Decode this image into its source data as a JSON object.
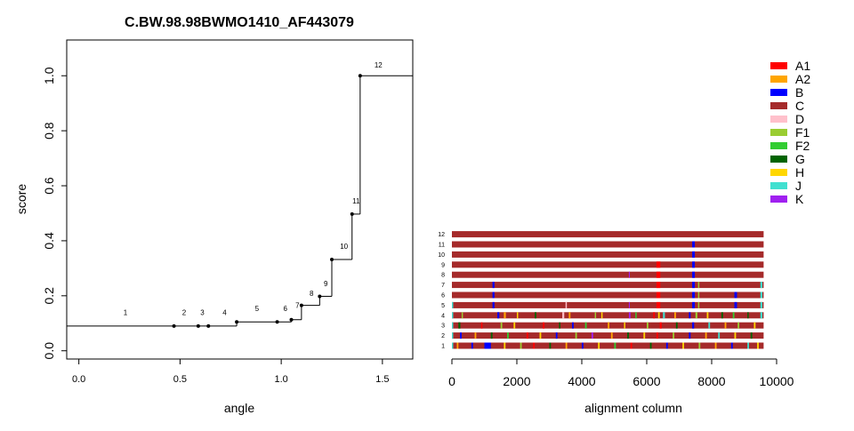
{
  "chart_data": [
    {
      "type": "line",
      "title": "C.BW.98.98BWMO1410_AF443079",
      "xlabel": "angle",
      "ylabel": "score",
      "xlim": [
        -0.06,
        1.65
      ],
      "ylim": [
        -0.03,
        1.13
      ],
      "x_ticks": [
        0.0,
        0.5,
        1.0,
        1.5
      ],
      "x_tick_labels": [
        "0.0",
        "0.5",
        "1.0",
        "1.5"
      ],
      "y_ticks": [
        0.0,
        0.2,
        0.4,
        0.6,
        0.8,
        1.0
      ],
      "y_tick_labels": [
        "0.0",
        "0.2",
        "0.4",
        "0.6",
        "0.8",
        "1.0"
      ],
      "step_points": [
        {
          "label": "1",
          "x": -0.06,
          "y": 0.09
        },
        {
          "label": "2",
          "x": 0.47,
          "y": 0.09
        },
        {
          "label": "3",
          "x": 0.59,
          "y": 0.09
        },
        {
          "label": "4",
          "x": 0.64,
          "y": 0.09
        },
        {
          "label": "5",
          "x": 0.78,
          "y": 0.105
        },
        {
          "label": "6",
          "x": 0.98,
          "y": 0.105
        },
        {
          "label": "7",
          "x": 1.05,
          "y": 0.113
        },
        {
          "label": "8",
          "x": 1.1,
          "y": 0.165
        },
        {
          "label": "9",
          "x": 1.19,
          "y": 0.198
        },
        {
          "label": "10",
          "x": 1.25,
          "y": 0.332
        },
        {
          "label": "11",
          "x": 1.35,
          "y": 0.497
        },
        {
          "label": "12",
          "x": 1.39,
          "y": 1.0
        }
      ],
      "end_x": 1.65,
      "marker_x": [
        0.47,
        0.59,
        0.64,
        0.78,
        0.98,
        1.05,
        1.1,
        1.19,
        1.25,
        1.35,
        1.39
      ],
      "point_labels": [
        {
          "text": "1",
          "x": 0.23,
          "y": 0.13
        },
        {
          "text": "2",
          "x": 0.52,
          "y": 0.13
        },
        {
          "text": "3",
          "x": 0.61,
          "y": 0.13
        },
        {
          "text": "4",
          "x": 0.72,
          "y": 0.13
        },
        {
          "text": "5",
          "x": 0.88,
          "y": 0.145
        },
        {
          "text": "6",
          "x": 1.02,
          "y": 0.145
        },
        {
          "text": "7",
          "x": 1.08,
          "y": 0.155
        },
        {
          "text": "8",
          "x": 1.15,
          "y": 0.2
        },
        {
          "text": "9",
          "x": 1.22,
          "y": 0.235
        },
        {
          "text": "10",
          "x": 1.31,
          "y": 0.37
        },
        {
          "text": "11",
          "x": 1.37,
          "y": 0.535
        },
        {
          "text": "12",
          "x": 1.48,
          "y": 1.03
        }
      ]
    },
    {
      "type": "heatmap",
      "xlabel": "alignment column",
      "xlim": [
        0,
        10000
      ],
      "x_ticks": [
        0,
        2000,
        4000,
        6000,
        8000,
        10000
      ],
      "x_tick_labels": [
        "0",
        "2000",
        "4000",
        "6000",
        "8000",
        "10000"
      ],
      "sequence_length": 9600,
      "row_labels": [
        "1",
        "2",
        "3",
        "4",
        "5",
        "6",
        "7",
        "8",
        "9",
        "10",
        "11",
        "12"
      ],
      "base_subtype": "C",
      "segments": {
        "12": [],
        "11": [
          [
            7400,
            7480,
            "B"
          ]
        ],
        "10": [
          [
            7400,
            7480,
            "B"
          ]
        ],
        "9": [
          [
            6300,
            6420,
            "A1"
          ],
          [
            7400,
            7480,
            "B"
          ]
        ],
        "8": [
          [
            6300,
            6420,
            "A1"
          ],
          [
            7400,
            7480,
            "B"
          ],
          [
            5450,
            5480,
            "K"
          ]
        ],
        "7": [
          [
            1250,
            1310,
            "B"
          ],
          [
            6300,
            6420,
            "A1"
          ],
          [
            7400,
            7480,
            "B"
          ],
          [
            7580,
            7620,
            "F1"
          ],
          [
            9500,
            9560,
            "J"
          ]
        ],
        "6": [
          [
            1250,
            1310,
            "B"
          ],
          [
            6300,
            6420,
            "A1"
          ],
          [
            7400,
            7480,
            "B"
          ],
          [
            7580,
            7620,
            "F1"
          ],
          [
            8700,
            8780,
            "B"
          ],
          [
            9500,
            9560,
            "J"
          ]
        ],
        "5": [
          [
            0,
            40,
            "J"
          ],
          [
            1250,
            1310,
            "B"
          ],
          [
            3500,
            3540,
            "D"
          ],
          [
            5450,
            5480,
            "K"
          ],
          [
            6300,
            6420,
            "A1"
          ],
          [
            7400,
            7480,
            "B"
          ],
          [
            7580,
            7620,
            "F1"
          ],
          [
            8700,
            8780,
            "B"
          ],
          [
            9500,
            9560,
            "J"
          ]
        ],
        "4": [
          [
            0,
            40,
            "J"
          ],
          [
            300,
            340,
            "F1"
          ],
          [
            1400,
            1460,
            "B"
          ],
          [
            1600,
            1660,
            "A2"
          ],
          [
            2000,
            2040,
            "H"
          ],
          [
            2550,
            2600,
            "G"
          ],
          [
            3400,
            3460,
            "D"
          ],
          [
            3600,
            3650,
            "A2"
          ],
          [
            4400,
            4440,
            "F1"
          ],
          [
            4600,
            4640,
            "H"
          ],
          [
            5450,
            5500,
            "K"
          ],
          [
            5650,
            5690,
            "F2"
          ],
          [
            6200,
            6250,
            "A1"
          ],
          [
            6350,
            6400,
            "H"
          ],
          [
            6500,
            6560,
            "J"
          ],
          [
            6850,
            6900,
            "A2"
          ],
          [
            7300,
            7350,
            "B"
          ],
          [
            7500,
            7560,
            "F1"
          ],
          [
            7850,
            7900,
            "H"
          ],
          [
            8300,
            8350,
            "G"
          ],
          [
            8650,
            8700,
            "F2"
          ],
          [
            9100,
            9140,
            "G"
          ],
          [
            9500,
            9560,
            "J"
          ]
        ],
        "3": [
          [
            0,
            40,
            "J"
          ],
          [
            200,
            260,
            "G"
          ],
          [
            900,
            940,
            "A1"
          ],
          [
            1500,
            1550,
            "F1"
          ],
          [
            1900,
            1950,
            "H"
          ],
          [
            2800,
            2850,
            "A1"
          ],
          [
            3300,
            3340,
            "G"
          ],
          [
            3700,
            3750,
            "B"
          ],
          [
            4100,
            4150,
            "F2"
          ],
          [
            4800,
            4850,
            "A2"
          ],
          [
            5300,
            5340,
            "H"
          ],
          [
            6000,
            6050,
            "F1"
          ],
          [
            6400,
            6460,
            "A1"
          ],
          [
            6900,
            6950,
            "G"
          ],
          [
            7400,
            7460,
            "B"
          ],
          [
            7900,
            7950,
            "J"
          ],
          [
            8400,
            8450,
            "A2"
          ],
          [
            8800,
            8850,
            "F1"
          ],
          [
            9300,
            9350,
            "H"
          ]
        ],
        "2": [
          [
            0,
            40,
            "J"
          ],
          [
            250,
            300,
            "B"
          ],
          [
            700,
            750,
            "A2"
          ],
          [
            1200,
            1250,
            "G"
          ],
          [
            1700,
            1750,
            "F2"
          ],
          [
            2300,
            2350,
            "A1"
          ],
          [
            2700,
            2750,
            "H"
          ],
          [
            3200,
            3250,
            "B"
          ],
          [
            3800,
            3850,
            "F1"
          ],
          [
            4300,
            4350,
            "K"
          ],
          [
            4900,
            4950,
            "A2"
          ],
          [
            5400,
            5450,
            "G"
          ],
          [
            5900,
            5950,
            "H"
          ],
          [
            6300,
            6350,
            "A1"
          ],
          [
            6800,
            6850,
            "F1"
          ],
          [
            7300,
            7350,
            "B"
          ],
          [
            7800,
            7850,
            "A2"
          ],
          [
            8200,
            8250,
            "J"
          ],
          [
            8700,
            8750,
            "H"
          ],
          [
            9200,
            9250,
            "G"
          ]
        ],
        "1": [
          [
            0,
            40,
            "J"
          ],
          [
            150,
            200,
            "A2"
          ],
          [
            600,
            650,
            "B"
          ],
          [
            1000,
            1200,
            "B"
          ],
          [
            1600,
            1650,
            "H"
          ],
          [
            2100,
            2150,
            "F1"
          ],
          [
            2500,
            2550,
            "A1"
          ],
          [
            3000,
            3050,
            "G"
          ],
          [
            3500,
            3550,
            "A2"
          ],
          [
            4000,
            4050,
            "B"
          ],
          [
            4500,
            4550,
            "H"
          ],
          [
            5000,
            5050,
            "F2"
          ],
          [
            5500,
            5550,
            "A1"
          ],
          [
            6100,
            6150,
            "G"
          ],
          [
            6600,
            6650,
            "B"
          ],
          [
            7100,
            7150,
            "H"
          ],
          [
            7600,
            7650,
            "F1"
          ],
          [
            8100,
            8150,
            "A2"
          ],
          [
            8600,
            8650,
            "B"
          ],
          [
            9100,
            9150,
            "J"
          ],
          [
            9400,
            9450,
            "H"
          ]
        ]
      }
    }
  ],
  "legend": {
    "placement": "top-right",
    "items": [
      {
        "label": "A1",
        "color": "#FF0000"
      },
      {
        "label": "A2",
        "color": "#FFA500"
      },
      {
        "label": "B",
        "color": "#0000FF"
      },
      {
        "label": "C",
        "color": "#A52A2A"
      },
      {
        "label": "D",
        "color": "#FFC0CB"
      },
      {
        "label": "F1",
        "color": "#9ACD32"
      },
      {
        "label": "F2",
        "color": "#32CD32"
      },
      {
        "label": "G",
        "color": "#006400"
      },
      {
        "label": "H",
        "color": "#FFD700"
      },
      {
        "label": "J",
        "color": "#40E0D0"
      },
      {
        "label": "K",
        "color": "#A020F0"
      }
    ]
  }
}
